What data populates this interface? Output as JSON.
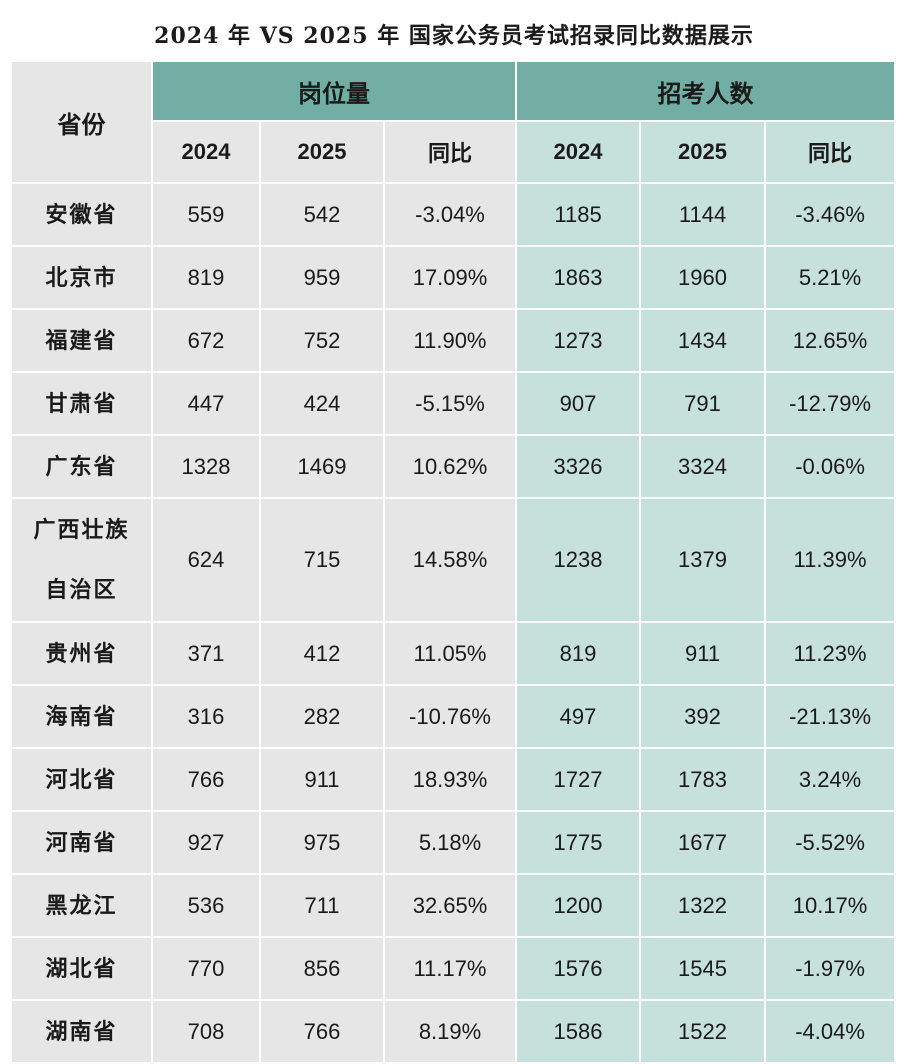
{
  "title": "2024 年 VS 2025 年 国家公务员考试招录同比数据展示",
  "header": {
    "province": "省份",
    "group_positions": "岗位量",
    "group_applicants": "招考人数",
    "sub": [
      "2024",
      "2025",
      "同比",
      "2024",
      "2025",
      "同比"
    ]
  },
  "rows": [
    {
      "province": "安徽省",
      "p2024": "559",
      "p2025": "542",
      "pyoy": "-3.04%",
      "a2024": "1185",
      "a2025": "1144",
      "ayoy": "-3.46%"
    },
    {
      "province": "北京市",
      "p2024": "819",
      "p2025": "959",
      "pyoy": "17.09%",
      "a2024": "1863",
      "a2025": "1960",
      "ayoy": "5.21%"
    },
    {
      "province": "福建省",
      "p2024": "672",
      "p2025": "752",
      "pyoy": "11.90%",
      "a2024": "1273",
      "a2025": "1434",
      "ayoy": "12.65%"
    },
    {
      "province": "甘肃省",
      "p2024": "447",
      "p2025": "424",
      "pyoy": "-5.15%",
      "a2024": "907",
      "a2025": "791",
      "ayoy": "-12.79%"
    },
    {
      "province": "广东省",
      "p2024": "1328",
      "p2025": "1469",
      "pyoy": "10.62%",
      "a2024": "3326",
      "a2025": "3324",
      "ayoy": "-0.06%"
    },
    {
      "province_line1": "广西壮族",
      "province_line2": "自治区",
      "p2024": "624",
      "p2025": "715",
      "pyoy": "14.58%",
      "a2024": "1238",
      "a2025": "1379",
      "ayoy": "11.39%"
    },
    {
      "province": "贵州省",
      "p2024": "371",
      "p2025": "412",
      "pyoy": "11.05%",
      "a2024": "819",
      "a2025": "911",
      "ayoy": "11.23%"
    },
    {
      "province": "海南省",
      "p2024": "316",
      "p2025": "282",
      "pyoy": "-10.76%",
      "a2024": "497",
      "a2025": "392",
      "ayoy": "-21.13%"
    },
    {
      "province": "河北省",
      "p2024": "766",
      "p2025": "911",
      "pyoy": "18.93%",
      "a2024": "1727",
      "a2025": "1783",
      "ayoy": "3.24%"
    },
    {
      "province": "河南省",
      "p2024": "927",
      "p2025": "975",
      "pyoy": "5.18%",
      "a2024": "1775",
      "a2025": "1677",
      "ayoy": "-5.52%"
    },
    {
      "province": "黑龙江",
      "p2024": "536",
      "p2025": "711",
      "pyoy": "32.65%",
      "a2024": "1200",
      "a2025": "1322",
      "ayoy": "10.17%"
    },
    {
      "province": "湖北省",
      "p2024": "770",
      "p2025": "856",
      "pyoy": "11.17%",
      "a2024": "1576",
      "a2025": "1545",
      "ayoy": "-1.97%"
    },
    {
      "province": "湖南省",
      "p2024": "708",
      "p2025": "766",
      "pyoy": "8.19%",
      "a2024": "1586",
      "a2025": "1522",
      "ayoy": "-4.04%"
    }
  ]
}
